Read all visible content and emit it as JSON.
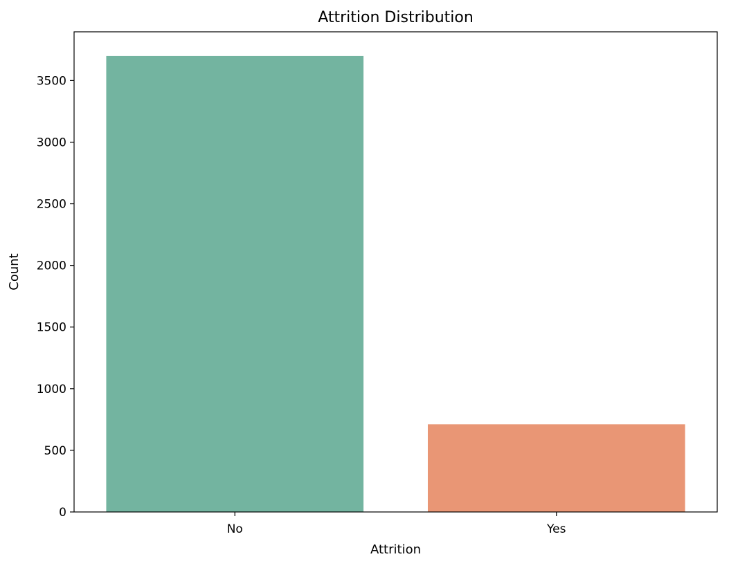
{
  "chart_data": {
    "type": "bar",
    "title": "Attrition Distribution",
    "xlabel": "Attrition",
    "ylabel": "Count",
    "categories": [
      "No",
      "Yes"
    ],
    "values": [
      3699,
      711
    ],
    "colors": [
      "#73b4a0",
      "#e99675"
    ],
    "ylim": [
      0,
      3895
    ],
    "yticks": [
      0,
      500,
      1000,
      1500,
      2000,
      2500,
      3000,
      3500
    ],
    "grid": false,
    "legend": "none"
  }
}
